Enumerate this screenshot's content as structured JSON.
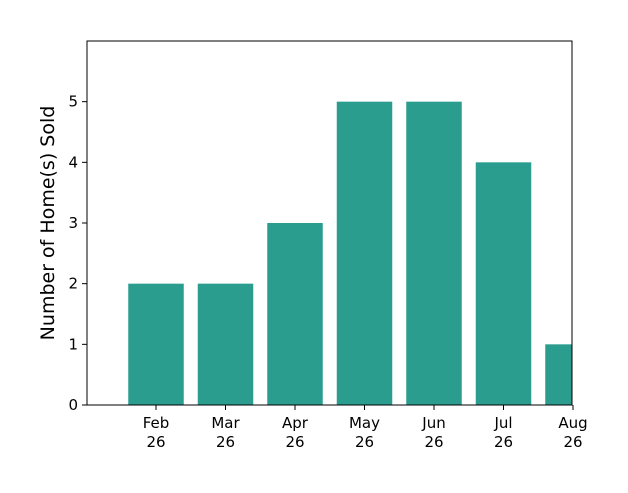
{
  "chart_data": {
    "type": "bar",
    "title": "",
    "xlabel": "",
    "ylabel": "Number of Home(s) Sold",
    "categories": [
      [
        "Feb",
        "26"
      ],
      [
        "Mar",
        "26"
      ],
      [
        "Apr",
        "26"
      ],
      [
        "May",
        "26"
      ],
      [
        "Jun",
        "26"
      ],
      [
        "Jul",
        "26"
      ],
      [
        "Aug",
        "26"
      ]
    ],
    "values": [
      2,
      2,
      3,
      5,
      5,
      4,
      1
    ],
    "ylim": [
      0,
      6
    ],
    "yticks": [
      0,
      1,
      2,
      3,
      4,
      5
    ],
    "bar_color": "#2a9d8f",
    "grid": false,
    "legend": "none"
  }
}
